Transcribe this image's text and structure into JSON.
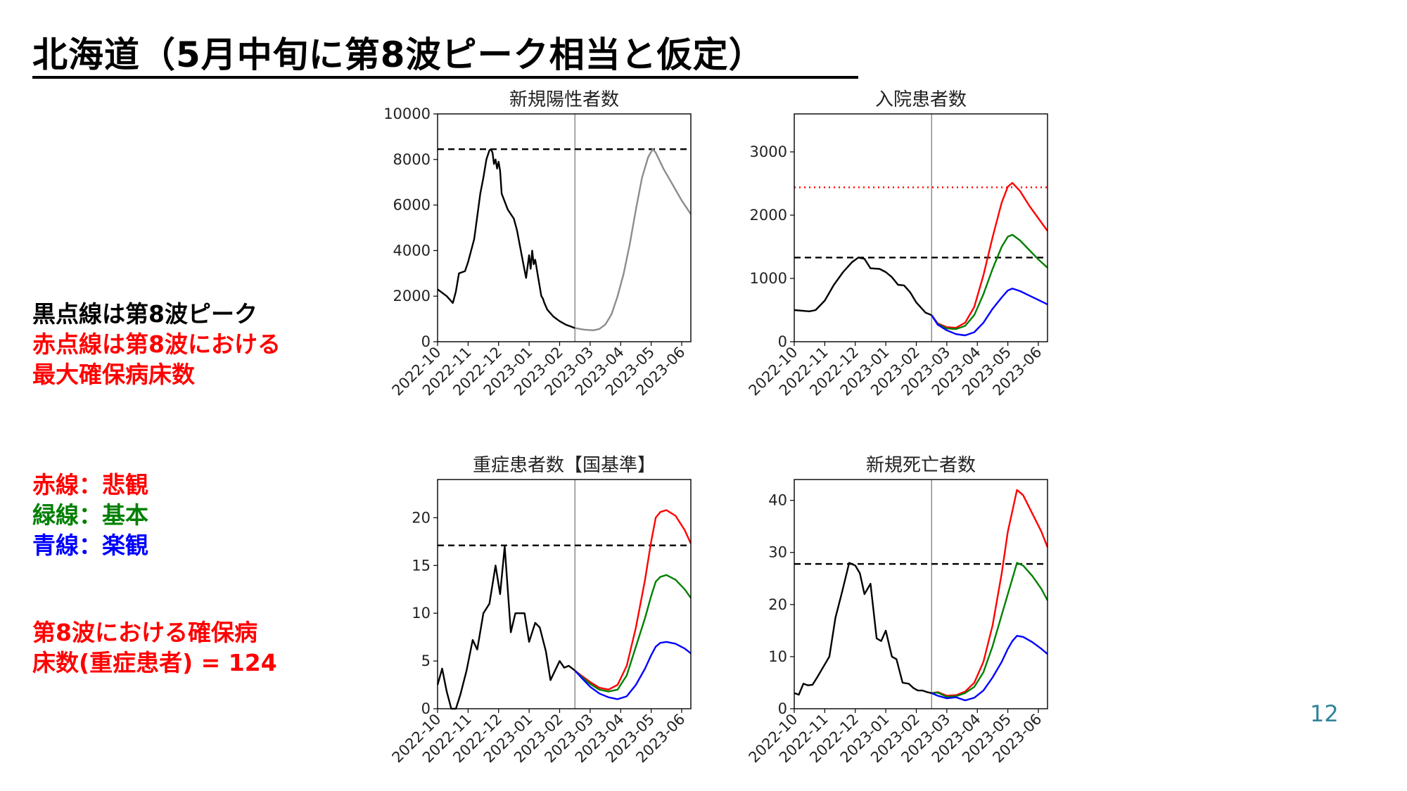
{
  "slide": {
    "title": "北海道（5月中旬に第8波ピーク相当と仮定）",
    "page_number": "12"
  },
  "notes": {
    "line1": "黒点線は第8波ピーク",
    "line2": "赤点線は第8波における",
    "line3": "最大確保病床数",
    "legend_red": "赤線：悲観",
    "legend_green": "緑線：基本",
    "legend_blue": "青線：楽観",
    "beds_line1": "第8波における確保病",
    "beds_line2": "床数(重症患者) = 124"
  },
  "colors": {
    "observed": "#000000",
    "projection_single": "#8c8c8c",
    "pessimistic": "#ff0000",
    "baseline": "#008000",
    "optimistic": "#0000ff",
    "peak_line": "#000000",
    "bed_line": "#ff0000",
    "red_text": "#ff0000",
    "green_text": "#008000",
    "blue_text": "#0000ff",
    "page_number": "#31849b"
  },
  "chart_data": [
    {
      "id": "new_cases",
      "type": "line",
      "title": "新規陽性者数",
      "x_ticks": [
        "2022-10",
        "2022-11",
        "2022-12",
        "2023-01",
        "2023-02",
        "2023-03",
        "2023-04",
        "2023-05",
        "2023-06"
      ],
      "x_range": [
        0,
        8.3
      ],
      "ylim": [
        0,
        10000
      ],
      "y_ticks": [
        0,
        2000,
        4000,
        6000,
        8000,
        10000
      ],
      "y_tick_labels": [
        "0",
        "2000",
        "4000",
        "6000",
        "8000",
        "10000"
      ],
      "current_date_x": 4.5,
      "hlines": [
        {
          "y": 8450,
          "style": "dashed",
          "color": "#000000"
        }
      ],
      "series": [
        {
          "role": "observed",
          "color": "#000000",
          "x": [
            0,
            0.3,
            0.5,
            0.6,
            0.7,
            0.9,
            1.0,
            1.2,
            1.3,
            1.4,
            1.5,
            1.6,
            1.7,
            1.75,
            1.8,
            1.85,
            1.9,
            1.95,
            2.0,
            2.05,
            2.1,
            2.3,
            2.5,
            2.6,
            2.7,
            2.8,
            2.9,
            3.0,
            3.05,
            3.1,
            3.15,
            3.2,
            3.3,
            3.35,
            3.4,
            3.45,
            3.5,
            3.6,
            3.8,
            4.0,
            4.2,
            4.4,
            4.5
          ],
          "y": [
            2300,
            2000,
            1700,
            2200,
            3000,
            3100,
            3500,
            4500,
            5500,
            6500,
            7200,
            8000,
            8400,
            8450,
            8300,
            7800,
            8000,
            7600,
            7900,
            7500,
            6500,
            5800,
            5400,
            4900,
            4200,
            3500,
            2800,
            3800,
            3200,
            4000,
            3400,
            3600,
            2800,
            2400,
            2000,
            1900,
            1700,
            1400,
            1100,
            900,
            750,
            650,
            600
          ]
        },
        {
          "role": "projection",
          "color": "#8c8c8c",
          "x": [
            4.5,
            4.8,
            5.1,
            5.3,
            5.5,
            5.7,
            5.9,
            6.1,
            6.3,
            6.5,
            6.7,
            6.9,
            7.05,
            7.15,
            7.4,
            7.7,
            8.0,
            8.3
          ],
          "y": [
            600,
            530,
            500,
            560,
            760,
            1200,
            2000,
            3000,
            4300,
            5800,
            7200,
            8100,
            8450,
            8300,
            7600,
            6900,
            6200,
            5600
          ]
        }
      ]
    },
    {
      "id": "inpatients",
      "type": "line",
      "title": "入院患者数",
      "x_ticks": [
        "2022-10",
        "2022-11",
        "2022-12",
        "2023-01",
        "2023-02",
        "2023-03",
        "2023-04",
        "2023-05",
        "2023-06"
      ],
      "x_range": [
        0,
        8.3
      ],
      "ylim": [
        0,
        3600
      ],
      "y_ticks": [
        0,
        1000,
        2000,
        3000
      ],
      "y_tick_labels": [
        "0",
        "1000",
        "2000",
        "3000"
      ],
      "current_date_x": 4.5,
      "hlines": [
        {
          "y": 2440,
          "style": "dotted",
          "color": "#ff0000"
        },
        {
          "y": 1330,
          "style": "dashed",
          "color": "#000000"
        }
      ],
      "series": [
        {
          "role": "observed",
          "color": "#000000",
          "x": [
            0,
            0.5,
            0.7,
            1.0,
            1.3,
            1.6,
            1.9,
            2.1,
            2.3,
            2.5,
            2.8,
            3.0,
            3.2,
            3.4,
            3.6,
            3.8,
            4.0,
            4.3,
            4.5
          ],
          "y": [
            500,
            480,
            500,
            650,
            900,
            1100,
            1260,
            1330,
            1310,
            1160,
            1150,
            1100,
            1020,
            900,
            890,
            780,
            620,
            460,
            420
          ]
        },
        {
          "role": "pessimistic",
          "color": "#ff0000",
          "x": [
            4.5,
            4.7,
            5.0,
            5.3,
            5.6,
            5.9,
            6.2,
            6.5,
            6.8,
            7.0,
            7.15,
            7.4,
            7.7,
            8.0,
            8.3
          ],
          "y": [
            420,
            290,
            230,
            220,
            300,
            550,
            1050,
            1650,
            2200,
            2450,
            2510,
            2380,
            2150,
            1950,
            1750
          ]
        },
        {
          "role": "baseline",
          "color": "#008000",
          "x": [
            4.5,
            4.7,
            5.0,
            5.3,
            5.6,
            5.9,
            6.2,
            6.5,
            6.8,
            7.0,
            7.15,
            7.4,
            7.7,
            8.0,
            8.3
          ],
          "y": [
            420,
            280,
            210,
            200,
            250,
            420,
            750,
            1150,
            1500,
            1660,
            1690,
            1600,
            1450,
            1300,
            1170
          ]
        },
        {
          "role": "optimistic",
          "color": "#0000ff",
          "x": [
            4.5,
            4.7,
            5.0,
            5.3,
            5.6,
            5.9,
            6.2,
            6.5,
            6.8,
            7.0,
            7.15,
            7.4,
            7.7,
            8.0,
            8.3
          ],
          "y": [
            420,
            270,
            180,
            120,
            100,
            150,
            300,
            520,
            700,
            810,
            840,
            800,
            730,
            660,
            590
          ]
        }
      ]
    },
    {
      "id": "severe",
      "type": "line",
      "title": "重症患者数【国基準】",
      "x_ticks": [
        "2022-10",
        "2022-11",
        "2022-12",
        "2023-01",
        "2023-02",
        "2023-03",
        "2023-04",
        "2023-05",
        "2023-06"
      ],
      "x_range": [
        0,
        8.3
      ],
      "ylim": [
        0,
        24
      ],
      "y_ticks": [
        0,
        5,
        10,
        15,
        20
      ],
      "y_tick_labels": [
        "0",
        "5",
        "10",
        "15",
        "20"
      ],
      "current_date_x": 4.5,
      "hlines": [
        {
          "y": 17.1,
          "style": "dashed",
          "color": "#000000"
        }
      ],
      "series": [
        {
          "role": "observed",
          "color": "#000000",
          "x": [
            0,
            0.15,
            0.3,
            0.45,
            0.6,
            0.75,
            0.95,
            1.15,
            1.3,
            1.5,
            1.7,
            1.9,
            2.05,
            2.2,
            2.4,
            2.55,
            2.7,
            2.85,
            3.0,
            3.2,
            3.35,
            3.55,
            3.7,
            3.85,
            4.0,
            4.15,
            4.3,
            4.5
          ],
          "y": [
            2.5,
            4.2,
            1.8,
            0,
            0,
            1.5,
            4,
            7.2,
            6.2,
            10,
            11,
            15,
            12,
            17,
            8,
            10,
            10,
            10,
            7,
            9,
            8.5,
            6,
            3,
            4,
            5,
            4.3,
            4.5,
            4
          ]
        },
        {
          "role": "pessimistic",
          "color": "#ff0000",
          "x": [
            4.5,
            4.7,
            5.0,
            5.3,
            5.6,
            5.9,
            6.2,
            6.5,
            6.8,
            7.0,
            7.15,
            7.3,
            7.5,
            7.8,
            8.1,
            8.3
          ],
          "y": [
            4,
            3.5,
            2.8,
            2.2,
            2.0,
            2.5,
            4.5,
            8.5,
            13.5,
            17.5,
            20,
            20.6,
            20.8,
            20.2,
            18.7,
            17.3
          ]
        },
        {
          "role": "baseline",
          "color": "#008000",
          "x": [
            4.5,
            4.7,
            5.0,
            5.3,
            5.6,
            5.9,
            6.2,
            6.5,
            6.8,
            7.0,
            7.15,
            7.3,
            7.5,
            7.8,
            8.1,
            8.3
          ],
          "y": [
            4,
            3.4,
            2.6,
            2.0,
            1.8,
            2.0,
            3.5,
            6.5,
            9.5,
            11.8,
            13.3,
            13.8,
            14,
            13.5,
            12.5,
            11.6
          ]
        },
        {
          "role": "optimistic",
          "color": "#0000ff",
          "x": [
            4.5,
            4.7,
            5.0,
            5.3,
            5.6,
            5.9,
            6.2,
            6.5,
            6.8,
            7.0,
            7.15,
            7.3,
            7.5,
            7.8,
            8.1,
            8.3
          ],
          "y": [
            4,
            3.3,
            2.3,
            1.6,
            1.2,
            1.0,
            1.3,
            2.5,
            4.2,
            5.6,
            6.5,
            6.9,
            7.0,
            6.8,
            6.3,
            5.8
          ]
        }
      ]
    },
    {
      "id": "deaths",
      "type": "line",
      "title": "新規死亡者数",
      "x_ticks": [
        "2022-10",
        "2022-11",
        "2022-12",
        "2023-01",
        "2023-02",
        "2023-03",
        "2023-04",
        "2023-05",
        "2023-06"
      ],
      "x_range": [
        0,
        8.3
      ],
      "ylim": [
        0,
        44
      ],
      "y_ticks": [
        0,
        10,
        20,
        30,
        40
      ],
      "y_tick_labels": [
        "0",
        "10",
        "20",
        "30",
        "40"
      ],
      "current_date_x": 4.5,
      "hlines": [
        {
          "y": 27.8,
          "style": "dashed",
          "color": "#000000"
        }
      ],
      "series": [
        {
          "role": "observed",
          "color": "#000000",
          "x": [
            0,
            0.15,
            0.3,
            0.45,
            0.6,
            0.75,
            0.95,
            1.15,
            1.35,
            1.55,
            1.8,
            2.0,
            2.15,
            2.3,
            2.5,
            2.7,
            2.85,
            3.0,
            3.2,
            3.35,
            3.55,
            3.75,
            3.9,
            4.05,
            4.2,
            4.35,
            4.5
          ],
          "y": [
            3,
            2.7,
            4.8,
            4.5,
            4.6,
            6,
            8,
            10,
            17.5,
            22,
            28,
            27.5,
            26,
            22,
            24,
            13.5,
            13,
            15,
            10,
            9.5,
            5,
            4.8,
            4,
            3.5,
            3.5,
            3.2,
            3
          ]
        },
        {
          "role": "pessimistic",
          "color": "#ff0000",
          "x": [
            4.5,
            4.7,
            5.0,
            5.3,
            5.6,
            5.9,
            6.2,
            6.5,
            6.8,
            7.0,
            7.15,
            7.3,
            7.5,
            7.8,
            8.1,
            8.3
          ],
          "y": [
            3,
            3.2,
            2.5,
            2.6,
            3.3,
            5,
            9,
            16,
            26,
            34,
            38,
            42,
            41,
            37.5,
            34,
            31
          ]
        },
        {
          "role": "baseline",
          "color": "#008000",
          "x": [
            4.5,
            4.7,
            5.0,
            5.3,
            5.6,
            5.9,
            6.2,
            6.5,
            6.8,
            7.0,
            7.15,
            7.3,
            7.5,
            7.8,
            8.1,
            8.3
          ],
          "y": [
            3,
            3.1,
            2.3,
            2.4,
            3.0,
            4.2,
            7,
            12,
            18,
            22,
            25,
            28,
            27.5,
            25.5,
            23,
            20.8
          ]
        },
        {
          "role": "optimistic",
          "color": "#0000ff",
          "x": [
            4.5,
            4.7,
            5.0,
            5.3,
            5.6,
            5.9,
            6.2,
            6.5,
            6.8,
            7.0,
            7.15,
            7.3,
            7.5,
            7.8,
            8.1,
            8.3
          ],
          "y": [
            3,
            2.5,
            2.0,
            2.2,
            1.6,
            2.1,
            3.5,
            6,
            9,
            11.5,
            13,
            14,
            13.8,
            12.8,
            11.5,
            10.5
          ]
        }
      ]
    }
  ]
}
